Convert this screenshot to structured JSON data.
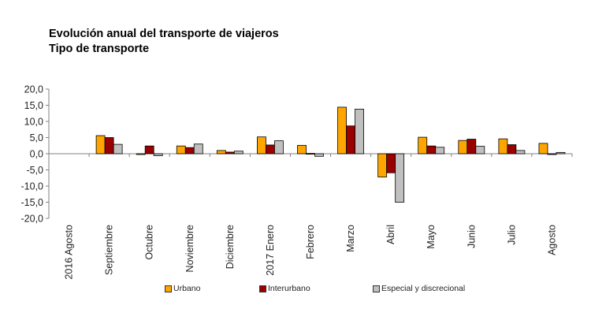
{
  "chart_data": {
    "type": "bar",
    "title": "Evolución anual del transporte de viajeros",
    "subtitle": "Tipo de transporte",
    "xlabel": "",
    "ylabel": "",
    "ylim": [
      -20,
      20
    ],
    "yticks": [
      20,
      15,
      10,
      5,
      0,
      -5,
      -10,
      -15,
      -20
    ],
    "ytick_labels": [
      "20,0",
      "15,0",
      "10,0",
      "5,0",
      "0,0",
      "-5,0",
      "-10,0",
      "-15,0",
      "-20,0"
    ],
    "grid": false,
    "legend_position": "bottom",
    "categories": [
      "2016 Agosto",
      "Septiembre",
      "Octubre",
      "Noviembre",
      "Diciembre",
      "2017 Enero",
      "Febrero",
      "Marzo",
      "Abril",
      "Mayo",
      "Junio",
      "Julio",
      "Agosto"
    ],
    "series": [
      {
        "name": "Urbano",
        "color": "#FFA500",
        "values": [
          null,
          5.6,
          -0.2,
          2.4,
          1.0,
          5.2,
          2.6,
          14.4,
          -7.2,
          5.1,
          4.1,
          4.6,
          3.2
        ]
      },
      {
        "name": "Interurbano",
        "color": "#990000",
        "values": [
          null,
          5.0,
          2.4,
          1.9,
          0.5,
          2.7,
          0.1,
          8.6,
          -5.9,
          2.4,
          4.5,
          2.8,
          -0.2
        ]
      },
      {
        "name": "Especial y discrecional",
        "color": "#C0C0C0",
        "values": [
          null,
          2.9,
          -0.6,
          3.0,
          0.8,
          4.0,
          -0.8,
          13.8,
          -15.0,
          2.0,
          2.3,
          1.0,
          0.4
        ]
      }
    ]
  }
}
